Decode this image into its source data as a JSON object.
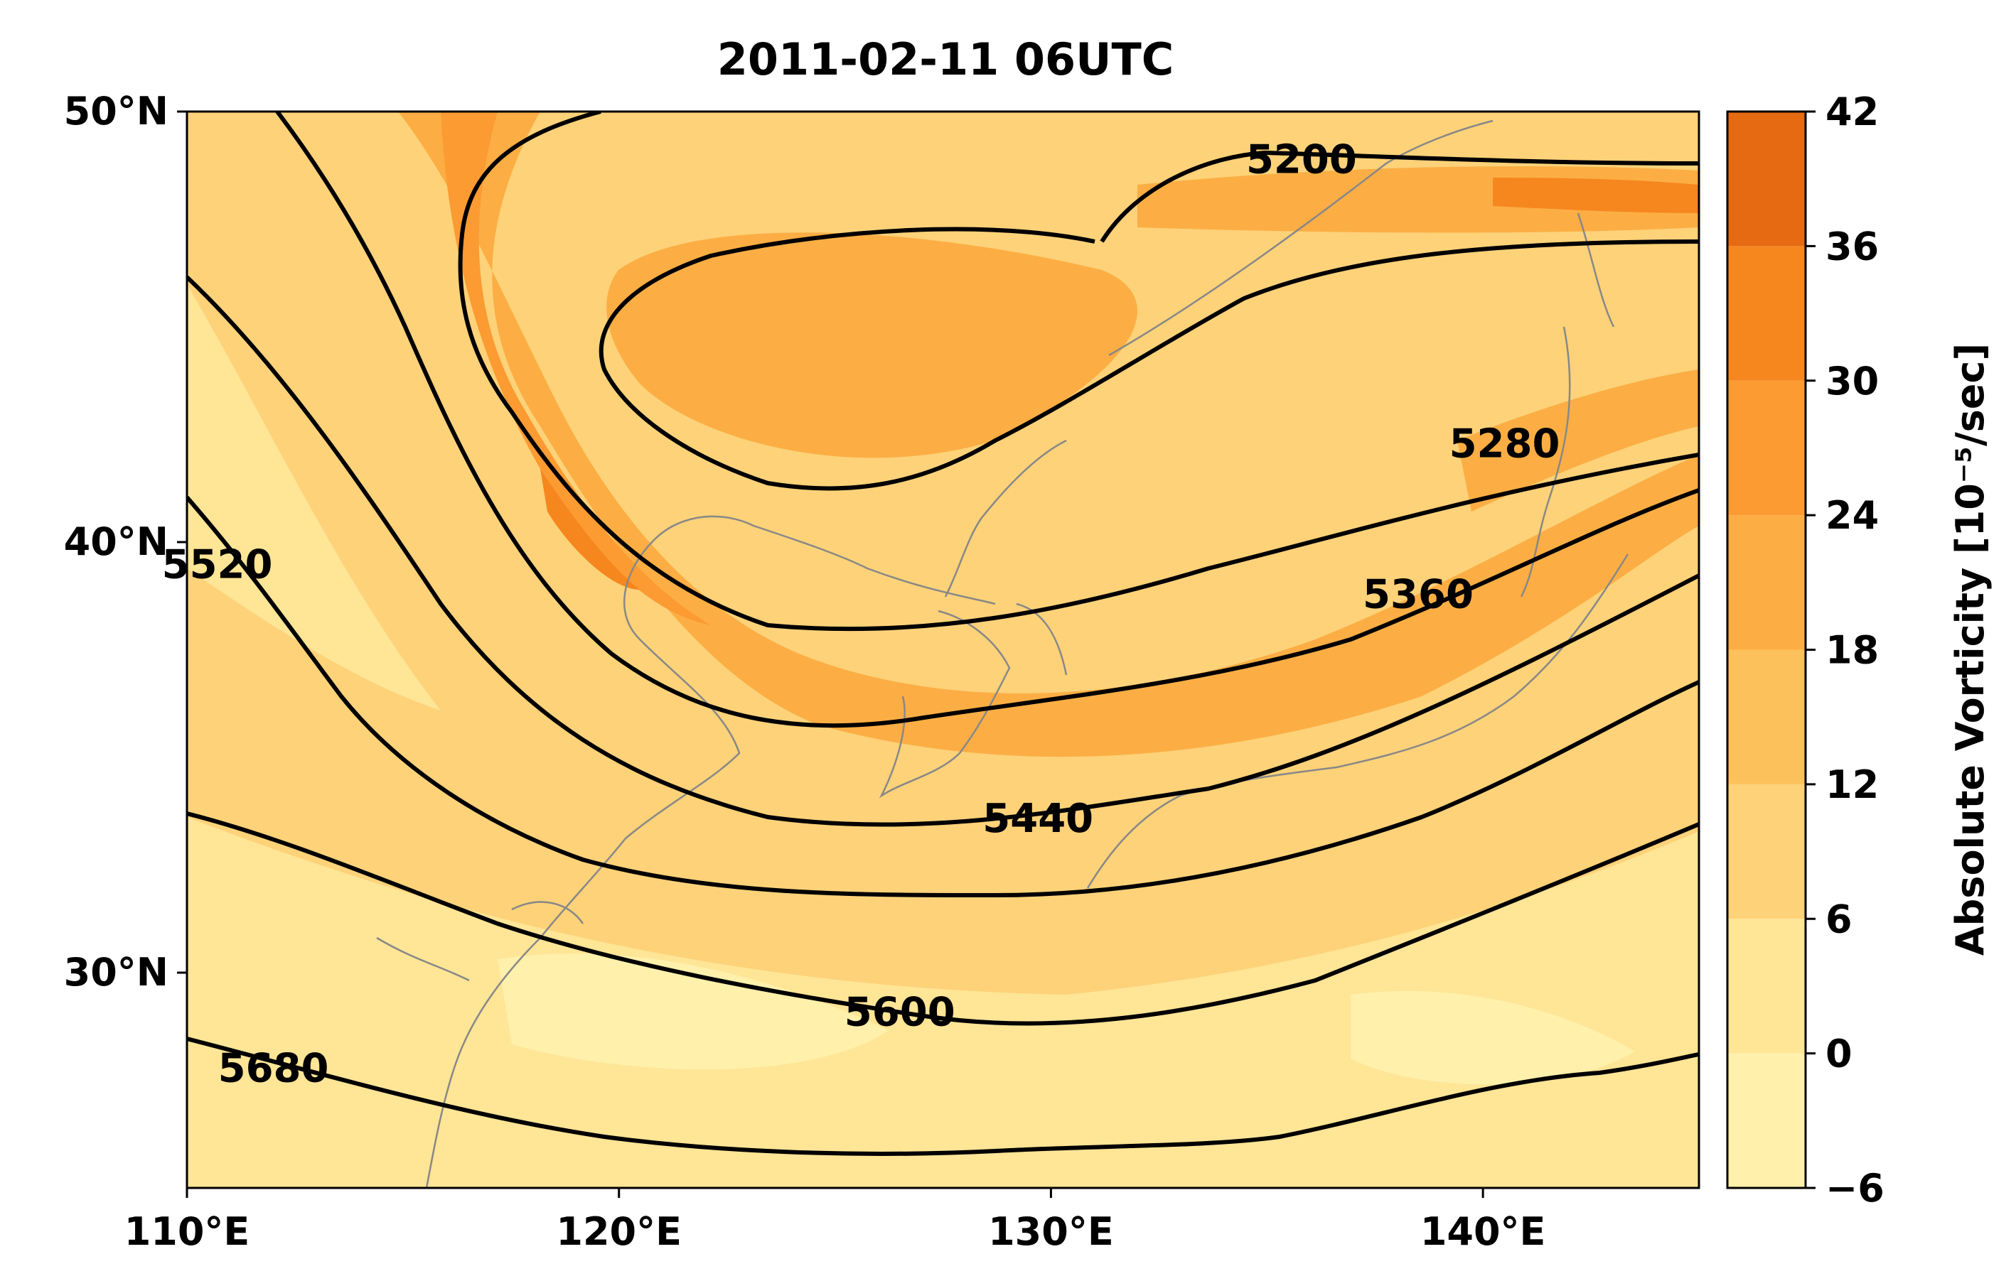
{
  "figure": {
    "title": "2011-02-11 06UTC",
    "colorbar_label": "Absolute Vorticity [10⁻⁵/sec]"
  },
  "map": {
    "lon_range": [
      110,
      145
    ],
    "lat_range": [
      25,
      50
    ],
    "x_ticks": [
      {
        "value": 110,
        "label": "110°E"
      },
      {
        "value": 120,
        "label": "120°E"
      },
      {
        "value": 130,
        "label": "130°E"
      },
      {
        "value": 140,
        "label": "140°E"
      }
    ],
    "y_ticks": [
      {
        "value": 50,
        "label": "50°N"
      },
      {
        "value": 40,
        "label": "40°N"
      },
      {
        "value": 30,
        "label": "30°N"
      }
    ]
  },
  "colorbar": {
    "levels": [
      -6,
      0,
      6,
      12,
      18,
      24,
      30,
      36,
      42
    ],
    "tick_labels": [
      "−6",
      "0",
      "6",
      "12",
      "18",
      "24",
      "30",
      "36",
      "42"
    ],
    "colors": [
      "#fff0ab",
      "#ffe596",
      "#fdd279",
      "#fdc15b",
      "#fcae44",
      "#fb9b32",
      "#f6861e",
      "#e56a12"
    ]
  },
  "contours": [
    {
      "label": "5200",
      "label_at": [
        135.8,
        48.9
      ]
    },
    {
      "label": "5280",
      "label_at": [
        140.5,
        42.3
      ]
    },
    {
      "label": "5360",
      "label_at": [
        138.5,
        38.8
      ]
    },
    {
      "label": "5440",
      "label_at": [
        129.7,
        33.6
      ]
    },
    {
      "label": "5520",
      "label_at": [
        110.7,
        39.5
      ]
    },
    {
      "label": "5600",
      "label_at": [
        126.5,
        29.1
      ]
    },
    {
      "label": "5680",
      "label_at": [
        112.0,
        27.8
      ]
    }
  ]
}
